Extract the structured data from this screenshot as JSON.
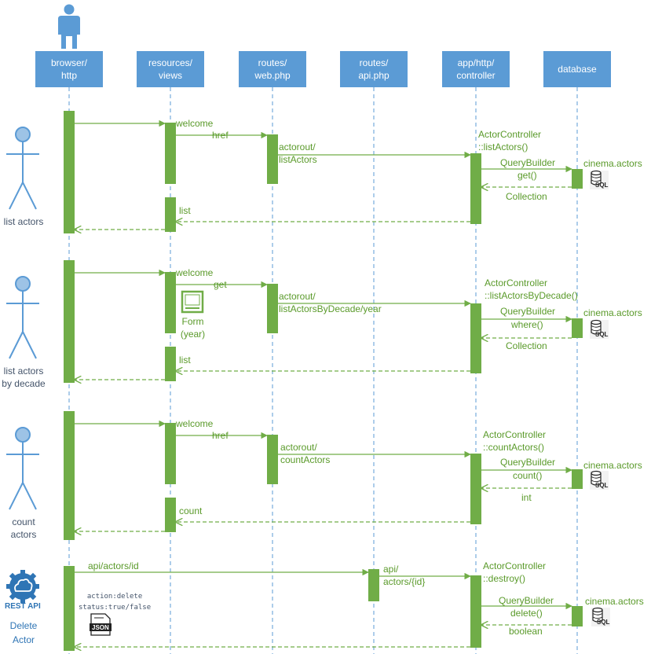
{
  "lifelines": [
    {
      "label": "browser/\nhttp"
    },
    {
      "label": "resources/\nviews"
    },
    {
      "label": "routes/\nweb.php"
    },
    {
      "label": "routes/\napi.php"
    },
    {
      "label": "app/http/\ncontroller"
    },
    {
      "label": "database"
    }
  ],
  "scenarios": [
    {
      "actor": "list actors",
      "view_msg": "welcome",
      "route_msg": "href",
      "route_call": "actorout/\nlistActors",
      "controller": "ActorController\n::listActors()",
      "query_builder": "QueryBuilder",
      "query_method": "get()",
      "table": "cinema.actors",
      "result": "Collection",
      "view_return": "list"
    },
    {
      "actor": "list actors\nby decade",
      "view_msg": "welcome",
      "route_msg": "get",
      "form_label": "Form\n(year)",
      "route_call": "actorout/\nlistActorsByDecade/year",
      "controller": "ActorController\n::listActorsByDecade()",
      "query_builder": "QueryBuilder",
      "query_method": "where()",
      "table": "cinema.actors",
      "result": "Collection",
      "view_return": "list"
    },
    {
      "actor": "count\nactors",
      "view_msg": "welcome",
      "route_msg": "href",
      "route_call": "actorout/\ncountActors",
      "controller": "ActorController\n::countActors()",
      "query_builder": "QueryBuilder",
      "query_method": "count()",
      "table": "cinema.actors",
      "result": "int",
      "view_return": "count"
    },
    {
      "actor": "Delete\nActor",
      "rest_label": "REST API",
      "api_msg": "api/actors/id",
      "api_route": "api/\nactors/{id}",
      "controller": "ActorController\n::destroy()",
      "query_builder": "QueryBuilder",
      "query_method": "delete()",
      "table": "cinema.actors",
      "result": "boolean",
      "json_note": "action:delete\nstatus:true/false",
      "json_label": "JSON"
    }
  ],
  "sql_label": "SQL",
  "colors": {
    "header": "#5b9bd5",
    "activation": "#70ad47",
    "message": "#70ad47",
    "actor": "#5b9bd5",
    "lifeline": "#5b9bd5"
  },
  "icons": [
    "user-icon",
    "stick-figure-icon",
    "rest-api-gear-icon",
    "json-file-icon",
    "database-sql-icon",
    "form-icon"
  ]
}
